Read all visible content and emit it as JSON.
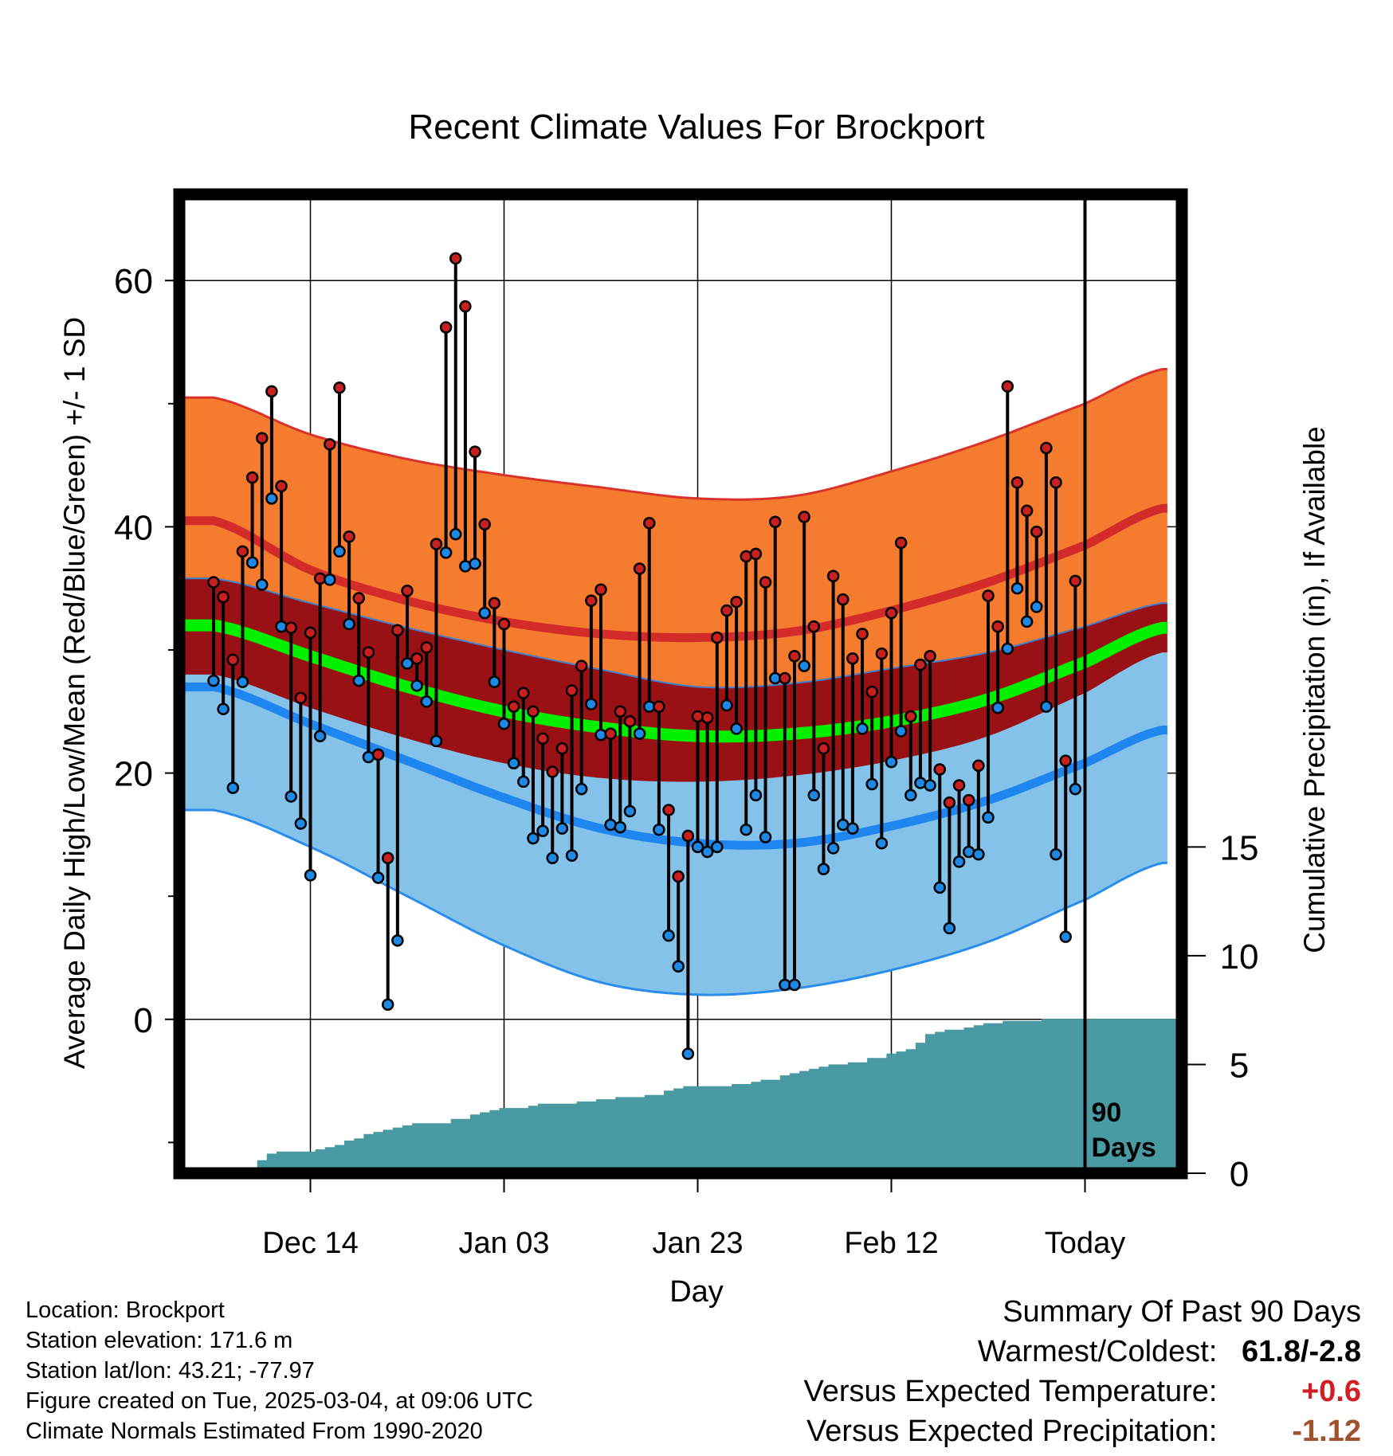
{
  "colors": {
    "high_band": "#f57b2f",
    "high_band_edge": "#d9342b",
    "normal_high_line": "#d32a2a",
    "mean_band": "#9a1115",
    "mean_line": "#00f000",
    "low_band": "#85c2ea",
    "low_band_edge": "#2a8ceb",
    "normal_low_line": "#1f86f0",
    "precip_fill": "#4a9aa3",
    "high_dot": "#c8201f",
    "low_dot": "#1e88e5",
    "frame": "#000000",
    "summary_temp": "#d21f26",
    "summary_precip": "#a0522d"
  },
  "chart_data": {
    "type": "line",
    "title": "Recent Climate Values For Brockport",
    "xlabel": "Day",
    "ylabel": "Average Daily High/Low/Mean (Red/Blue/Green) +/- 1 SD",
    "y2label": "Cumulative Precipitation (in), If Available",
    "ylim": [
      -12.5,
      67
    ],
    "y_ticks": [
      0,
      20,
      40,
      60
    ],
    "y_minor_ticks": [
      -10,
      10,
      30,
      50
    ],
    "y2lim": [
      0,
      45
    ],
    "y2_ticks": [
      0,
      5,
      10,
      15
    ],
    "day_range": [
      -89,
      9
    ],
    "x_ticks": [
      {
        "day": -79,
        "label": "Dec 14"
      },
      {
        "day": -59,
        "label": "Jan 03"
      },
      {
        "day": -39,
        "label": "Jan 23"
      },
      {
        "day": -19,
        "label": "Feb 12"
      },
      {
        "day": 1,
        "label": "Today"
      }
    ],
    "today_day": 1,
    "today_marker_label": [
      "90",
      "Days"
    ],
    "normals": {
      "days": [
        -89,
        -79,
        -69,
        -59,
        -49,
        -39,
        -29,
        -19,
        -9,
        1,
        9
      ],
      "high_upper": [
        50.5,
        47.5,
        45.5,
        44.2,
        43.2,
        42.3,
        42.5,
        44.5,
        47.0,
        50.0,
        52.8
      ],
      "high_mean": [
        40.5,
        36.5,
        34.0,
        32.3,
        31.3,
        31.0,
        31.5,
        33.2,
        35.5,
        38.5,
        41.5
      ],
      "mean_upper": [
        35.8,
        33.8,
        31.8,
        30.0,
        28.4,
        27.0,
        27.3,
        28.5,
        29.8,
        31.9,
        33.8
      ],
      "mean": [
        32.0,
        29.5,
        27.0,
        25.0,
        23.7,
        23.0,
        23.2,
        24.2,
        26.0,
        29.0,
        31.8
      ],
      "mean_lower": [
        28.0,
        25.3,
        22.8,
        20.8,
        19.6,
        19.3,
        19.8,
        21.0,
        23.0,
        26.5,
        29.8
      ],
      "low_mean": [
        27.0,
        24.0,
        21.0,
        18.0,
        15.5,
        14.3,
        14.3,
        15.7,
        17.8,
        20.8,
        23.5
      ],
      "low_lower": [
        17.0,
        14.0,
        10.0,
        6.0,
        3.0,
        2.0,
        2.5,
        4.0,
        6.3,
        9.7,
        12.7
      ]
    },
    "series": [
      {
        "name": "Daily High",
        "values": [
          35.5,
          34.3,
          29.2,
          38.0,
          44.0,
          47.2,
          51.0,
          43.3,
          31.8,
          26.1,
          31.4,
          35.8,
          46.7,
          51.3,
          39.2,
          34.2,
          29.8,
          21.5,
          13.1,
          31.6,
          34.8,
          29.3,
          30.2,
          38.6,
          56.2,
          61.8,
          57.9,
          46.1,
          40.2,
          33.8,
          32.1,
          25.4,
          26.5,
          25.0,
          22.8,
          20.1,
          22.0,
          26.7,
          28.7,
          34.0,
          34.9,
          23.2,
          25.0,
          24.2,
          36.6,
          40.3,
          25.4,
          17.0,
          11.6,
          14.9,
          24.6,
          24.5,
          31.0,
          33.2,
          33.9,
          37.6,
          37.8,
          35.5,
          40.4,
          27.7,
          29.5,
          40.8,
          31.9,
          22.0,
          36.0,
          34.1,
          29.3,
          31.3,
          26.6,
          29.7,
          33.0,
          38.7,
          24.6,
          28.8,
          29.5,
          20.3,
          17.6,
          19.0,
          17.8,
          20.6,
          34.4,
          31.9,
          51.4,
          43.6,
          41.3,
          39.6,
          46.4,
          43.6,
          21.0,
          35.6
        ]
      },
      {
        "name": "Daily Low",
        "values": [
          27.5,
          25.2,
          18.8,
          27.4,
          37.1,
          35.3,
          42.3,
          31.9,
          18.1,
          15.9,
          11.7,
          23.0,
          35.7,
          38.0,
          32.1,
          27.5,
          21.3,
          11.5,
          1.2,
          6.4,
          28.9,
          27.1,
          25.8,
          22.6,
          37.9,
          39.4,
          36.8,
          37.0,
          33.0,
          27.4,
          24.0,
          20.8,
          19.3,
          14.7,
          15.3,
          13.1,
          15.5,
          13.3,
          18.7,
          25.6,
          23.1,
          15.8,
          15.6,
          16.9,
          23.2,
          25.4,
          15.4,
          6.8,
          4.3,
          -2.8,
          14.0,
          13.6,
          14.0,
          25.5,
          23.6,
          15.4,
          18.2,
          14.8,
          27.7,
          2.8,
          2.8,
          28.7,
          18.2,
          12.2,
          13.9,
          15.8,
          15.5,
          23.6,
          19.1,
          14.3,
          20.9,
          23.4,
          18.2,
          19.2,
          19.0,
          10.7,
          7.4,
          12.8,
          13.6,
          13.4,
          16.4,
          25.3,
          30.1,
          35.0,
          32.3,
          33.5,
          25.4,
          13.4,
          6.7,
          18.7
        ]
      },
      {
        "name": "Cumulative Precipitation",
        "values": [
          0.0,
          0.0,
          0.0,
          0.0,
          0.0,
          0.6,
          0.9,
          1.0,
          1.0,
          1.0,
          1.0,
          1.1,
          1.2,
          1.3,
          1.5,
          1.6,
          1.8,
          1.9,
          2.0,
          2.1,
          2.2,
          2.3,
          2.3,
          2.3,
          2.3,
          2.5,
          2.5,
          2.7,
          2.8,
          2.9,
          3.0,
          3.0,
          3.0,
          3.1,
          3.2,
          3.2,
          3.2,
          3.2,
          3.3,
          3.3,
          3.4,
          3.4,
          3.5,
          3.5,
          3.5,
          3.6,
          3.6,
          3.8,
          3.9,
          4.0,
          4.0,
          4.0,
          4.0,
          4.0,
          4.1,
          4.1,
          4.2,
          4.3,
          4.3,
          4.5,
          4.6,
          4.7,
          4.8,
          4.9,
          5.0,
          5.0,
          5.1,
          5.1,
          5.3,
          5.3,
          5.5,
          5.6,
          5.7,
          6.0,
          6.4,
          6.5,
          6.6,
          6.6,
          6.7,
          6.8,
          6.9,
          6.9,
          7.0,
          7.0,
          7.0,
          7.0,
          7.1,
          7.1,
          7.1,
          7.1
        ]
      }
    ]
  },
  "info": {
    "location": "Location: Brockport",
    "elevation": "Station elevation: 171.6 m",
    "latlon": "Station lat/lon: 43.21; -77.97",
    "created": "Figure created on Tue, 2025-03-04, at 09:06 UTC",
    "normals": "Climate Normals Estimated From 1990-2020"
  },
  "summary": {
    "title": "Summary Of Past 90 Days",
    "warmest_coldest_label": "Warmest/Coldest:",
    "warmest_coldest_value": "61.8/-2.8",
    "temp_label": "Versus Expected Temperature:",
    "temp_value": "+0.6",
    "precip_label": "Versus Expected Precipitation:",
    "precip_value": "-1.12"
  }
}
